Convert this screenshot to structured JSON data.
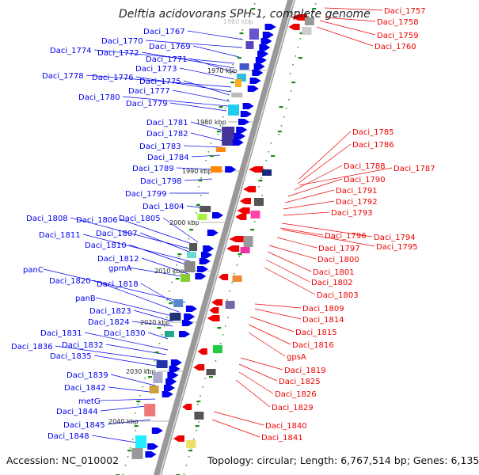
{
  "title": "Delftia acidovorans SPH-1, complete genome",
  "accession": "Accession: NC_010002",
  "topology": "Topology: circular; Length: 6,767,514 bp; Genes: 6,135",
  "ruler_labels": [
    "1970 kbp",
    "1980 kbp",
    "1990 kbp",
    "2000 kbp",
    "2010 kbp",
    "2020 kbp",
    "2030 kbp",
    "2040 kbp"
  ],
  "faded_ruler_label": "1960 kbp",
  "left_genes": [
    "Daci_1767",
    "Daci_1770",
    "Daci_1769",
    "Daci_1774",
    "Daci_1772",
    "Daci_1771",
    "Daci_1773",
    "Daci_1778",
    "Daci_1776",
    "Daci_1775",
    "Daci_1777",
    "Daci_1780",
    "Daci_1779",
    "Daci_1781",
    "Daci_1782",
    "Daci_1783",
    "Daci_1784",
    "Daci_1789",
    "Daci_1798",
    "Daci_1799",
    "Daci_1804",
    "Daci_1808",
    "Daci_1806",
    "Daci_1805",
    "Daci_1807",
    "Daci_1811",
    "Daci_1810",
    "Daci_1812",
    "panC",
    "gpmA",
    "Daci_1820",
    "Daci_1818",
    "panB",
    "Daci_1823",
    "Daci_1824",
    "Daci_1830",
    "Daci_1831",
    "Daci_1832",
    "Daci_1836",
    "Daci_1835",
    "Daci_1839",
    "Daci_1842",
    "metG",
    "Daci_1844",
    "Daci_1845",
    "Daci_1848"
  ],
  "right_genes": [
    "Daci_1757",
    "Daci_1758",
    "Daci_1759",
    "Daci_1760",
    "Daci_1785",
    "Daci_1786",
    "Daci_1788",
    "Daci_1787",
    "Daci_1790",
    "Daci_1791",
    "Daci_1792",
    "Daci_1793",
    "Daci_1796",
    "Daci_1794",
    "Daci_1797",
    "Daci_1795",
    "Daci_1800",
    "Daci_1801",
    "Daci_1802",
    "Daci_1803",
    "Daci_1809",
    "Daci_1814",
    "Daci_1815",
    "Daci_1816",
    "gpsA",
    "Daci_1819",
    "Daci_1825",
    "Daci_1826",
    "Daci_1829",
    "Daci_1840",
    "Daci_1841"
  ],
  "colors": {
    "plus_strand": "#0000ee",
    "minus_strand": "#ee0000",
    "backbone": "#888888",
    "orf_tick": "#22aa22"
  }
}
